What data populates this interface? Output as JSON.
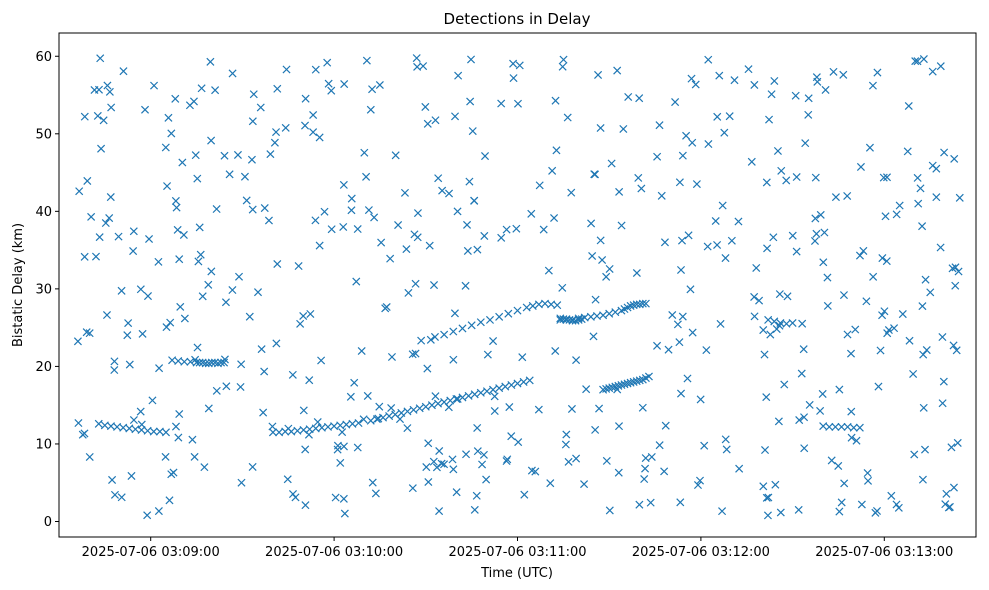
{
  "chart_data": {
    "type": "scatter",
    "title": "Detections in Delay",
    "xlabel": "Time (UTC)",
    "ylabel": "Bistatic Delay (km)",
    "marker": "x",
    "color": "#1f77b4",
    "grid": false,
    "x_tick_labels": [
      "2025-07-06 03:09:00",
      "2025-07-06 03:10:00",
      "2025-07-06 03:11:00",
      "2025-07-06 03:12:00",
      "2025-07-06 03:13:00"
    ],
    "y_tick_labels": [
      "0",
      "10",
      "20",
      "30",
      "40",
      "50",
      "60"
    ],
    "xlim": [
      "2025-07-06 03:08:30",
      "2025-07-06 03:13:30"
    ],
    "ylim": [
      -2,
      63
    ],
    "track_series": {
      "x": [
        "03:08:43",
        "03:08:45",
        "03:08:47",
        "03:08:49",
        "03:08:51",
        "03:08:53",
        "03:08:55",
        "03:08:57",
        "03:08:59",
        "03:09:01",
        "03:09:03",
        "03:09:05",
        "03:09:07",
        "03:09:09",
        "03:09:11",
        "03:09:13",
        "03:09:15",
        "03:09:16",
        "03:09:17",
        "03:09:18",
        "03:09:19",
        "03:09:20",
        "03:09:21",
        "03:09:22",
        "03:09:23",
        "03:09:24",
        "03:09:40",
        "03:09:42",
        "03:09:44",
        "03:09:46",
        "03:09:48",
        "03:09:50",
        "03:09:52",
        "03:09:54",
        "03:09:56",
        "03:09:58",
        "03:10:00",
        "03:10:02",
        "03:10:04",
        "03:10:06",
        "03:10:08",
        "03:10:12",
        "03:10:14",
        "03:10:16",
        "03:10:18",
        "03:10:20",
        "03:10:22",
        "03:10:24",
        "03:10:26",
        "03:10:28",
        "03:10:30",
        "03:10:32",
        "03:10:34",
        "03:10:36",
        "03:10:38",
        "03:10:40",
        "03:10:42",
        "03:10:44",
        "03:10:46",
        "03:10:48",
        "03:10:50",
        "03:10:52",
        "03:10:54",
        "03:10:56",
        "03:10:58",
        "03:11:00",
        "03:11:02",
        "03:11:04",
        "03:10:33",
        "03:10:36",
        "03:10:39",
        "03:10:42",
        "03:10:45",
        "03:10:48",
        "03:10:51",
        "03:10:54",
        "03:10:57",
        "03:11:00",
        "03:11:03",
        "03:11:05",
        "03:11:07",
        "03:11:09",
        "03:11:11",
        "03:11:13",
        "03:11:14",
        "03:11:15",
        "03:11:16",
        "03:11:17",
        "03:11:18",
        "03:11:19",
        "03:11:20",
        "03:11:21",
        "03:11:14",
        "03:11:16",
        "03:11:18",
        "03:11:20",
        "03:11:22",
        "03:11:24",
        "03:11:26",
        "03:11:28",
        "03:11:30",
        "03:11:32",
        "03:11:34",
        "03:11:35",
        "03:11:36",
        "03:11:37",
        "03:11:38",
        "03:11:39",
        "03:11:40",
        "03:11:41",
        "03:11:42",
        "03:11:28",
        "03:11:29",
        "03:11:30",
        "03:11:31",
        "03:11:32",
        "03:11:33",
        "03:11:34",
        "03:11:35",
        "03:11:36",
        "03:11:37",
        "03:11:38",
        "03:11:39",
        "03:11:40",
        "03:11:41",
        "03:11:42",
        "03:11:43",
        "03:12:22",
        "03:12:24",
        "03:12:26",
        "03:12:28",
        "03:12:30",
        "03:12:40",
        "03:12:42",
        "03:12:44",
        "03:12:46",
        "03:12:48",
        "03:12:50",
        "03:12:52"
      ],
      "y": [
        12.6,
        12.4,
        12.3,
        12.2,
        12.1,
        12.0,
        11.9,
        11.8,
        11.7,
        11.6,
        11.6,
        11.5,
        20.8,
        20.7,
        20.6,
        20.6,
        20.5,
        20.5,
        20.5,
        20.4,
        20.4,
        20.5,
        20.5,
        20.4,
        20.5,
        20.5,
        11.5,
        11.5,
        11.6,
        11.6,
        11.7,
        11.8,
        11.9,
        12.0,
        12.1,
        12.2,
        12.3,
        12.4,
        12.5,
        12.6,
        12.7,
        13.0,
        13.2,
        13.4,
        13.6,
        13.8,
        14.0,
        14.2,
        14.4,
        14.6,
        14.8,
        15.0,
        15.2,
        15.4,
        15.6,
        15.8,
        16.0,
        16.2,
        16.4,
        16.6,
        16.8,
        17.0,
        17.2,
        17.4,
        17.6,
        17.8,
        18.0,
        18.2,
        23.8,
        24.1,
        24.5,
        24.9,
        25.3,
        25.7,
        26.0,
        26.4,
        26.8,
        27.2,
        27.6,
        27.8,
        28.0,
        28.1,
        28.0,
        27.9,
        26.2,
        26.1,
        26.0,
        26.0,
        25.9,
        25.9,
        26.0,
        26.1,
        26.0,
        26.1,
        26.0,
        26.2,
        26.3,
        26.4,
        26.5,
        26.6,
        26.8,
        27.0,
        27.2,
        27.4,
        27.6,
        27.8,
        27.9,
        28.0,
        28.0,
        28.1,
        28.1,
        17.0,
        17.1,
        17.2,
        17.3,
        17.4,
        17.5,
        17.6,
        17.7,
        17.8,
        17.9,
        18.0,
        18.1,
        18.2,
        18.3,
        18.5,
        18.7,
        26.0,
        25.8,
        25.6,
        25.5,
        25.6,
        12.3,
        12.2,
        12.2,
        12.2,
        12.2,
        12.1,
        12.1
      ]
    },
    "clutter_series": {
      "seed": 20250706,
      "count": 560,
      "x_range": [
        "2025-07-06 03:08:36",
        "2025-07-06 03:13:26"
      ],
      "y_range": [
        0.5,
        60
      ]
    }
  }
}
